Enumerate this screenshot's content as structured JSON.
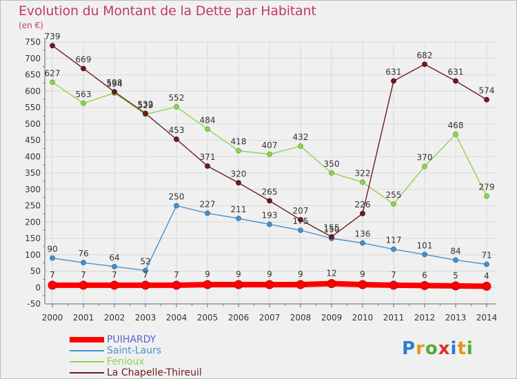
{
  "title": "Evolution du Montant de la Dette par Habitant",
  "unit_label": "(en €)",
  "logo": {
    "text": "Proxiti",
    "letters": [
      {
        "ch": "P",
        "color": "#2a7fd4"
      },
      {
        "ch": "r",
        "color": "#e8941a"
      },
      {
        "ch": "o",
        "color": "#4fae3a"
      },
      {
        "ch": "x",
        "color": "#d9302f"
      },
      {
        "ch": "i",
        "color": "#2a7fd4"
      },
      {
        "ch": "t",
        "color": "#e8941a"
      },
      {
        "ch": "i",
        "color": "#4fae3a"
      }
    ]
  },
  "chart_data": {
    "type": "line",
    "title": "Evolution du Montant de la Dette par Habitant",
    "ylabel": "(en €)",
    "xlabel": "",
    "x": [
      "2000",
      "2001",
      "2002",
      "2003",
      "2004",
      "2005",
      "2006",
      "2007",
      "2008",
      "2009",
      "2010",
      "2011",
      "2012",
      "2013",
      "2014"
    ],
    "ylim": [
      -50,
      750
    ],
    "yticks": [
      -50,
      0,
      50,
      100,
      150,
      200,
      250,
      300,
      350,
      400,
      450,
      500,
      550,
      600,
      650,
      700,
      750
    ],
    "grid": true,
    "legend_position": "bottom-left",
    "series": [
      {
        "name": "PUIHARDY",
        "color": "#ff0000",
        "values": [
          7,
          7,
          7,
          7,
          7,
          9,
          9,
          9,
          9,
          12,
          9,
          7,
          6,
          5,
          4
        ]
      },
      {
        "name": "Saint-Laurs",
        "color": "#4a90c8",
        "values": [
          90,
          76,
          64,
          52,
          250,
          227,
          211,
          193,
          175,
          150,
          136,
          117,
          101,
          84,
          71
        ]
      },
      {
        "name": "Fenioux",
        "color": "#8ed353",
        "values": [
          627,
          563,
          594,
          529,
          552,
          484,
          418,
          407,
          432,
          350,
          322,
          255,
          370,
          468,
          279
        ]
      },
      {
        "name": "La Chapelle-Thireuil",
        "color": "#6e1a1e",
        "values": [
          739,
          669,
          598,
          532,
          453,
          371,
          320,
          265,
          207,
          155,
          226,
          631,
          682,
          631,
          574
        ]
      }
    ]
  }
}
